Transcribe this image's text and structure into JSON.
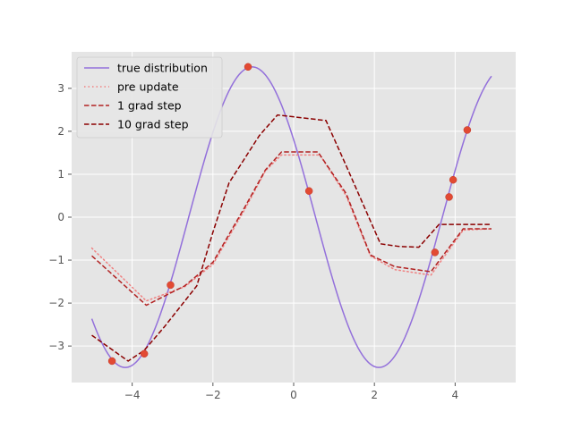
{
  "chart_data": {
    "type": "line",
    "title": "",
    "xlabel": "",
    "ylabel": "",
    "xlim": [
      -5.5,
      5.5
    ],
    "ylim": [
      -3.85,
      3.85
    ],
    "grid": true,
    "legend_position": "top-left",
    "x_ticks": [
      -4,
      -2,
      0,
      2,
      4
    ],
    "x_tick_labels": [
      "−4",
      "−2",
      "0",
      "2",
      "4"
    ],
    "y_ticks": [
      -3,
      -2,
      -1,
      0,
      1,
      2,
      3
    ],
    "y_tick_labels": [
      "−3",
      "−2",
      "−1",
      "0",
      "1",
      "2",
      "3"
    ],
    "series": [
      {
        "name": "true distribution",
        "style": "solid",
        "color": "#9370db",
        "function": "3.5*sin(x+2.6), x from -5 to 4.9"
      },
      {
        "name": "pre update",
        "style": "dotted",
        "color": "#f08080",
        "points": [
          [
            -5.0,
            -0.72
          ],
          [
            -3.65,
            -1.95
          ],
          [
            -2.7,
            -1.62
          ],
          [
            -2.0,
            -1.1
          ],
          [
            -1.2,
            0.2
          ],
          [
            -0.7,
            1.08
          ],
          [
            -0.3,
            1.45
          ],
          [
            0.65,
            1.45
          ],
          [
            1.3,
            0.5
          ],
          [
            1.9,
            -0.9
          ],
          [
            2.5,
            -1.22
          ],
          [
            3.4,
            -1.35
          ],
          [
            4.2,
            -0.3
          ],
          [
            4.9,
            -0.27
          ]
        ]
      },
      {
        "name": "1 grad step",
        "style": "dashed",
        "color": "#b22222",
        "points": [
          [
            -5.0,
            -0.9
          ],
          [
            -3.65,
            -2.05
          ],
          [
            -2.7,
            -1.6
          ],
          [
            -2.0,
            -1.05
          ],
          [
            -1.2,
            0.25
          ],
          [
            -0.7,
            1.1
          ],
          [
            -0.3,
            1.52
          ],
          [
            0.6,
            1.52
          ],
          [
            1.3,
            0.55
          ],
          [
            1.9,
            -0.88
          ],
          [
            2.5,
            -1.15
          ],
          [
            3.4,
            -1.27
          ],
          [
            4.2,
            -0.27
          ],
          [
            4.9,
            -0.27
          ]
        ]
      },
      {
        "name": "10 grad step",
        "style": "dashed",
        "color": "#8b0000",
        "points": [
          [
            -5.0,
            -2.75
          ],
          [
            -4.1,
            -3.35
          ],
          [
            -3.7,
            -3.1
          ],
          [
            -3.2,
            -2.55
          ],
          [
            -2.4,
            -1.6
          ],
          [
            -2.0,
            -0.35
          ],
          [
            -1.6,
            0.8
          ],
          [
            -0.85,
            1.9
          ],
          [
            -0.4,
            2.38
          ],
          [
            0.8,
            2.25
          ],
          [
            1.3,
            1.2
          ],
          [
            2.15,
            -0.62
          ],
          [
            2.6,
            -0.68
          ],
          [
            3.1,
            -0.7
          ],
          [
            3.6,
            -0.17
          ],
          [
            4.2,
            -0.17
          ],
          [
            4.9,
            -0.17
          ]
        ]
      }
    ],
    "scatter": {
      "color": "#e24a33",
      "points": [
        [
          -4.5,
          -3.35
        ],
        [
          -3.7,
          -3.18
        ],
        [
          -3.05,
          -1.58
        ],
        [
          -1.13,
          3.5
        ],
        [
          0.38,
          0.61
        ],
        [
          3.5,
          -0.82
        ],
        [
          3.85,
          0.47
        ],
        [
          3.95,
          0.87
        ],
        [
          4.3,
          2.03
        ]
      ]
    }
  }
}
